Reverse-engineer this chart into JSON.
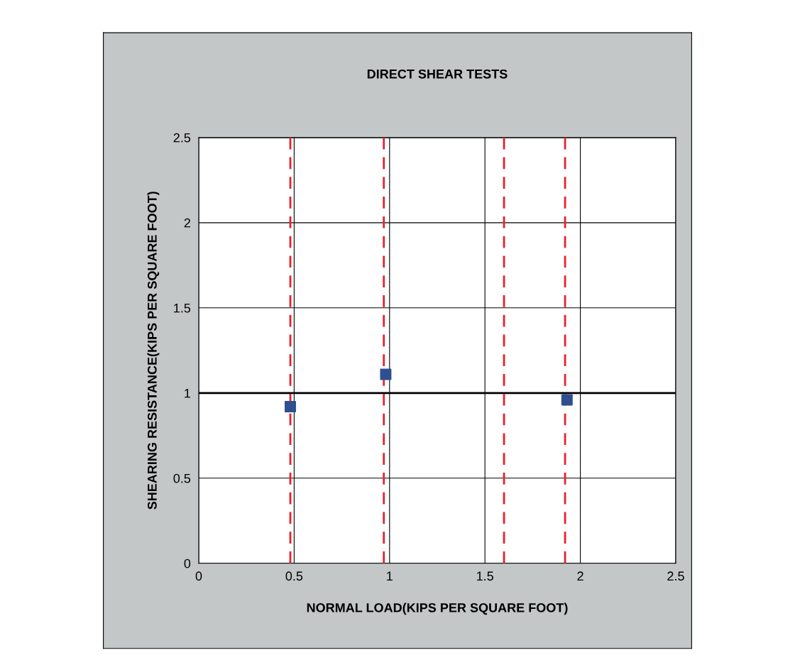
{
  "chart_data": {
    "type": "scatter",
    "title": "DIRECT SHEAR TESTS",
    "xlabel": "NORMAL LOAD(KIPS PER SQUARE FOOT)",
    "ylabel": "SHEARING RESISTANCE(KIPS PER SQUARE FOOT)",
    "series": [
      {
        "color": "#2f4f8f",
        "x": [
          0.48,
          0.98,
          1.93
        ],
        "values": [
          0.92,
          1.11,
          0.96
        ]
      }
    ],
    "marker": "square",
    "xlim": [
      0,
      2.5
    ],
    "ylim": [
      0,
      2.5
    ],
    "xticks": [
      0,
      0.5,
      1,
      1.5,
      2,
      2.5
    ],
    "yticks": [
      0,
      0.5,
      1,
      1.5,
      2,
      2.5
    ],
    "grid": true,
    "ref_lines": [
      {
        "axis": "y",
        "value": 1,
        "color": "#000000",
        "line_style": "solid"
      },
      {
        "axis": "x",
        "value": 0.48,
        "color": "#e8202a",
        "line_style": "dashed"
      },
      {
        "axis": "x",
        "value": 0.97,
        "color": "#e8202a",
        "line_style": "dashed"
      },
      {
        "axis": "x",
        "value": 1.6,
        "color": "#e8202a",
        "line_style": "dashed"
      },
      {
        "axis": "x",
        "value": 1.92,
        "color": "#e8202a",
        "line_style": "dashed"
      }
    ]
  }
}
